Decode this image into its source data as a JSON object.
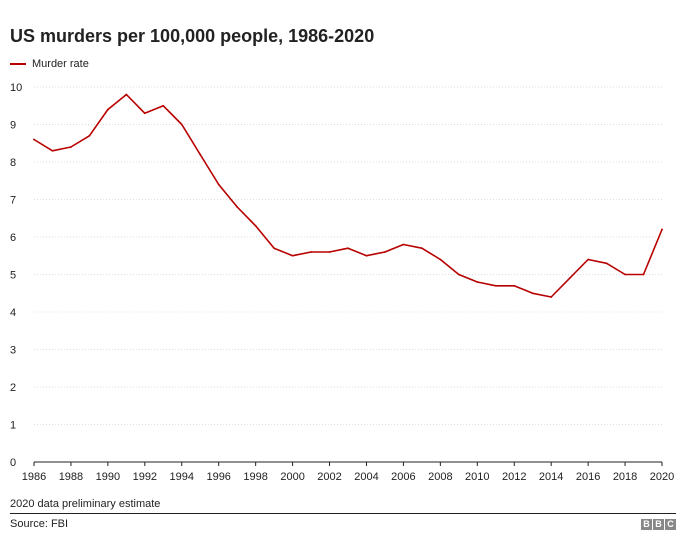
{
  "chart_data": {
    "type": "line",
    "title": "US murders per 100,000 people, 1986-2020",
    "xlabel": "",
    "ylabel": "",
    "ylim": [
      0,
      10
    ],
    "xlim": [
      1986,
      2020
    ],
    "yticks": [
      "0",
      "1",
      "2",
      "3",
      "4",
      "5",
      "6",
      "7",
      "8",
      "9",
      "10"
    ],
    "xticks": [
      "1986",
      "1988",
      "1990",
      "1992",
      "1994",
      "1996",
      "1998",
      "2000",
      "2002",
      "2004",
      "2006",
      "2008",
      "2010",
      "2012",
      "2014",
      "2016",
      "2018",
      "2020"
    ],
    "series": [
      {
        "name": "Murder rate",
        "color": "#b80000",
        "x": [
          1986,
          1987,
          1988,
          1989,
          1990,
          1991,
          1992,
          1993,
          1994,
          1995,
          1996,
          1997,
          1998,
          1999,
          2000,
          2001,
          2002,
          2003,
          2004,
          2005,
          2006,
          2007,
          2008,
          2009,
          2010,
          2011,
          2012,
          2013,
          2014,
          2015,
          2016,
          2017,
          2018,
          2019,
          2020
        ],
        "values": [
          8.6,
          8.3,
          8.4,
          8.7,
          9.4,
          9.8,
          9.3,
          9.5,
          9.0,
          8.2,
          7.4,
          6.8,
          6.3,
          5.7,
          5.5,
          5.6,
          5.6,
          5.7,
          5.5,
          5.6,
          5.8,
          5.7,
          5.4,
          5.0,
          4.8,
          4.7,
          4.7,
          4.5,
          4.4,
          4.9,
          5.4,
          5.3,
          5.0,
          5.0,
          6.2
        ]
      }
    ]
  },
  "legend": {
    "label": "Murder rate",
    "color": "#b80000"
  },
  "footnote": "2020 data preliminary estimate",
  "source": "Source: FBI",
  "logo": [
    "B",
    "B",
    "C"
  ]
}
